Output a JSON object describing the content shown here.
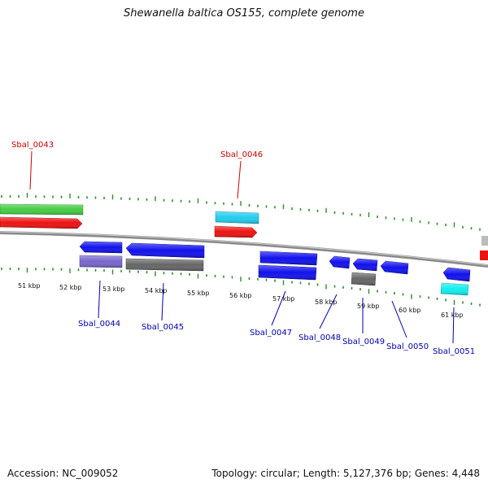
{
  "title": "Shewanella baltica OS155, complete genome",
  "footer": {
    "accession": "Accession: NC_009052",
    "summary": "Topology: circular; Length: 5,127,376 bp; Genes: 4,448"
  },
  "colors": {
    "backbone": "#8a8a8a",
    "tick": "#2e8b2e",
    "forward_label": "#cc0000",
    "reverse_label": "#0000aa",
    "green": "#44cc44",
    "red": "#ee1111",
    "cyan": "#22ccee",
    "blue": "#1111ee",
    "purple": "#7766cc",
    "gray": "#666666",
    "lightgray": "#bbbbbb",
    "lightcyan": "#11eeee"
  },
  "tick_labels": [
    "51 kbp",
    "52 kbp",
    "53 kbp",
    "54 kbp",
    "55 kbp",
    "56 kbp",
    "57 kbp",
    "58 kbp",
    "59 kbp",
    "60 kbp",
    "61 kbp"
  ],
  "forward_labels": [
    "Sbal_0043",
    "Sbal_0046"
  ],
  "reverse_labels": [
    "Sbal_0044",
    "Sbal_0045",
    "Sbal_0047",
    "Sbal_0048",
    "Sbal_0049",
    "Sbal_0050",
    "Sbal_0051"
  ]
}
